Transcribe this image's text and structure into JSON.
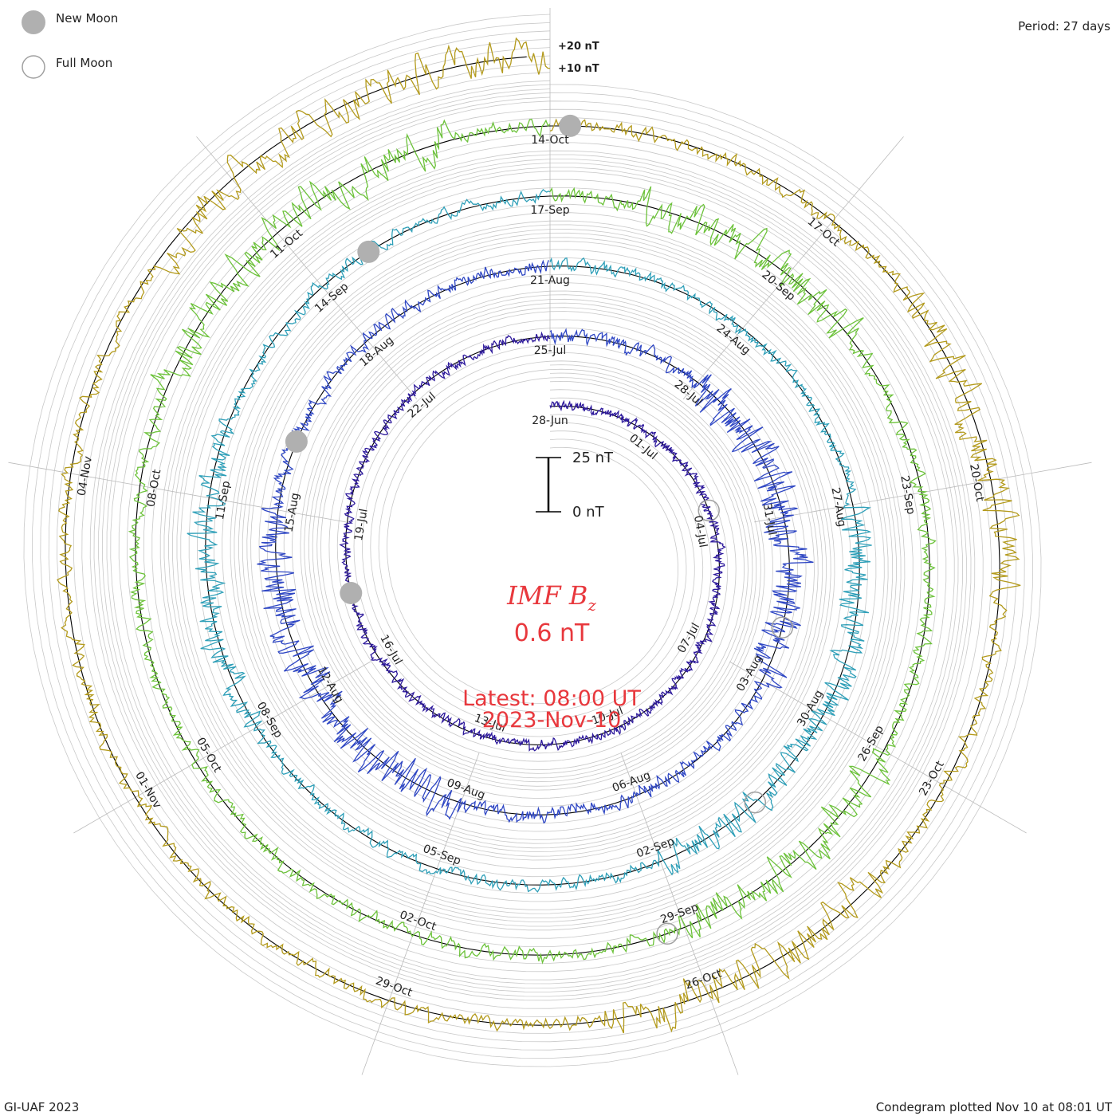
{
  "legend": {
    "new_moon": "New Moon",
    "full_moon": "Full Moon"
  },
  "period_label": "Period: 27 days",
  "scale_labels": {
    "plus20": "+20 nT",
    "plus10": "+10 nT"
  },
  "scale_bar": {
    "top": "25 nT",
    "bottom": "0 nT"
  },
  "quantity": {
    "name": "IMF",
    "subscript_base": "B",
    "subscript": "z",
    "value": "0.6 nT"
  },
  "latest": {
    "line1": "Latest: 08:00 UT",
    "line2": "2023-Nov-10"
  },
  "footer": {
    "left": "GI-UAF 2023",
    "right": "Condegram plotted Nov 10 at 08:01 UT"
  },
  "colors": {
    "text_red": "#e8383d",
    "moon_fill": "#b0b0b0",
    "grid": "#c8c8c8",
    "series": [
      "#1c0f3a",
      "#2e1a9c",
      "#2f47c4",
      "#2e9fb8",
      "#6cc23a",
      "#b39a1c",
      "#c02a10"
    ]
  },
  "chart_data": {
    "type": "line",
    "chart_kind": "condegram spiral",
    "period_days": 27,
    "ylabel": "IMF Bz (nT)",
    "ylim": [
      -20,
      20
    ],
    "latest_value_nT": 0.6,
    "date_labels": [
      {
        "label": "28-Jun",
        "day": 0
      },
      {
        "label": "01-Jul",
        "day": 3
      },
      {
        "label": "04-Jul",
        "day": 6
      },
      {
        "label": "07-Jul",
        "day": 9
      },
      {
        "label": "10-Jul",
        "day": 12
      },
      {
        "label": "13-Jul",
        "day": 15
      },
      {
        "label": "16-Jul",
        "day": 18
      },
      {
        "label": "19-Jul",
        "day": 21
      },
      {
        "label": "22-Jul",
        "day": 24
      },
      {
        "label": "25-Jul",
        "day": 27
      },
      {
        "label": "28-Jul",
        "day": 30
      },
      {
        "label": "31-Jul",
        "day": 33
      },
      {
        "label": "03-Aug",
        "day": 36
      },
      {
        "label": "06-Aug",
        "day": 39
      },
      {
        "label": "09-Aug",
        "day": 42
      },
      {
        "label": "12-Aug",
        "day": 45
      },
      {
        "label": "15-Aug",
        "day": 48
      },
      {
        "label": "18-Aug",
        "day": 51
      },
      {
        "label": "21-Aug",
        "day": 54
      },
      {
        "label": "24-Aug",
        "day": 57
      },
      {
        "label": "27-Aug",
        "day": 60
      },
      {
        "label": "30-Aug",
        "day": 63
      },
      {
        "label": "02-Sep",
        "day": 66
      },
      {
        "label": "05-Sep",
        "day": 69
      },
      {
        "label": "08-Sep",
        "day": 72
      },
      {
        "label": "11-Sep",
        "day": 75
      },
      {
        "label": "14-Sep",
        "day": 78
      },
      {
        "label": "17-Sep",
        "day": 81
      },
      {
        "label": "20-Sep",
        "day": 84
      },
      {
        "label": "23-Sep",
        "day": 87
      },
      {
        "label": "26-Sep",
        "day": 90
      },
      {
        "label": "29-Sep",
        "day": 93
      },
      {
        "label": "02-Oct",
        "day": 96
      },
      {
        "label": "05-Oct",
        "day": 99
      },
      {
        "label": "08-Oct",
        "day": 102
      },
      {
        "label": "11-Oct",
        "day": 105
      },
      {
        "label": "14-Oct",
        "day": 108
      },
      {
        "label": "17-Oct",
        "day": 111
      },
      {
        "label": "20-Oct",
        "day": 114
      },
      {
        "label": "23-Oct",
        "day": 117
      },
      {
        "label": "26-Oct",
        "day": 120
      },
      {
        "label": "29-Oct",
        "day": 123
      },
      {
        "label": "01-Nov",
        "day": 126
      },
      {
        "label": "04-Nov",
        "day": 129
      }
    ],
    "new_moons_day": [
      19.5,
      49.1,
      78.7,
      108.2
    ],
    "full_moons_day": [
      5.5,
      35.0,
      64.5,
      93.2
    ],
    "series": [
      {
        "start_date": "28-Jun",
        "end_date": "25-Jul",
        "amplitude_nT": 4,
        "disturbed_intervals": []
      },
      {
        "start_date": "25-Jul",
        "end_date": "21-Aug",
        "amplitude_nT": 6,
        "disturbed_intervals": [
          [
            3,
            9
          ],
          [
            15,
            21
          ]
        ]
      },
      {
        "start_date": "21-Aug",
        "end_date": "17-Sep",
        "amplitude_nT": 5,
        "disturbed_intervals": [
          [
            6,
            12
          ],
          [
            18,
            22
          ]
        ]
      },
      {
        "start_date": "17-Sep",
        "end_date": "14-Oct",
        "amplitude_nT": 6,
        "disturbed_intervals": [
          [
            1,
            4
          ],
          [
            9,
            12
          ],
          [
            22,
            26
          ]
        ]
      },
      {
        "start_date": "14-Oct",
        "end_date": "10-Nov",
        "amplitude_nT": 6,
        "disturbed_intervals": [
          [
            4,
            7
          ],
          [
            10,
            13
          ],
          [
            23,
            27
          ]
        ]
      },
      {
        "start_date": "10-Nov",
        "end_date": "10-Nov",
        "amplitude_nT": 8,
        "disturbed_intervals": [
          [
            0,
            1
          ]
        ]
      }
    ]
  }
}
